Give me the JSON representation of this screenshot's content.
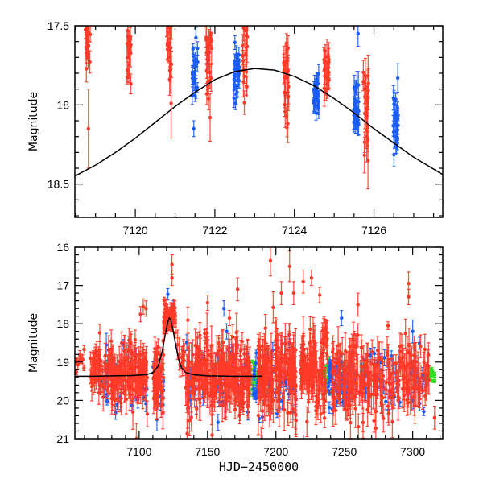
{
  "chart_data": [
    {
      "panel": "top",
      "type": "scatter",
      "title": "",
      "xlabel": "",
      "ylabel": "Magnitude",
      "xlim": [
        7118.48,
        7127.73
      ],
      "ylim": [
        18.71,
        17.5
      ],
      "y_inverted": true,
      "x_ticks": [
        7120,
        7122,
        7124,
        7126
      ],
      "x_tick_labels": [
        "7120",
        "7122",
        "7124",
        "7126"
      ],
      "x_minor_step": 0.5,
      "y_ticks": [
        17.5,
        18,
        18.5
      ],
      "y_tick_labels": [
        "17.5",
        "18",
        "18.5"
      ],
      "y_minor_step": 0.1,
      "grid": false,
      "legend": "none",
      "model_curve": {
        "color": "#000000",
        "x": [
          7118.48,
          7119.0,
          7119.5,
          7120.0,
          7120.5,
          7121.0,
          7121.5,
          7122.0,
          7122.5,
          7123.0,
          7123.5,
          7124.0,
          7124.5,
          7125.0,
          7125.5,
          7126.0,
          7126.5,
          7127.0,
          7127.73
        ],
        "y": [
          18.45,
          18.38,
          18.3,
          18.21,
          18.11,
          18.01,
          17.92,
          17.84,
          17.79,
          17.77,
          17.78,
          17.82,
          17.88,
          17.96,
          18.05,
          18.15,
          18.24,
          18.33,
          18.44
        ]
      },
      "series": [
        {
          "name": "red",
          "color": "#ff3a28",
          "clusters": [
            {
              "x": 7118.8,
              "mag": 17.55,
              "spread": 0.18,
              "n": 28,
              "err": 0.06
            },
            {
              "x": 7119.85,
              "mag": 17.65,
              "spread": 0.12,
              "n": 22,
              "err": 0.06
            },
            {
              "x": 7120.85,
              "mag": 17.63,
              "spread": 0.15,
              "n": 26,
              "err": 0.07
            },
            {
              "x": 7121.85,
              "mag": 17.66,
              "spread": 0.14,
              "n": 22,
              "err": 0.07
            },
            {
              "x": 7122.75,
              "mag": 17.68,
              "spread": 0.12,
              "n": 22,
              "err": 0.07
            },
            {
              "x": 7123.8,
              "mag": 17.86,
              "spread": 0.12,
              "n": 24,
              "err": 0.08
            },
            {
              "x": 7124.8,
              "mag": 17.82,
              "spread": 0.1,
              "n": 20,
              "err": 0.08
            },
            {
              "x": 7125.8,
              "mag": 18.0,
              "spread": 0.12,
              "n": 20,
              "err": 0.09
            }
          ],
          "outliers": [
            {
              "x": 7118.82,
              "mag": 18.15,
              "err": 0.25
            },
            {
              "x": 7121.88,
              "mag": 18.08,
              "err": 0.15
            },
            {
              "x": 7120.9,
              "mag": 17.99,
              "err": 0.22
            },
            {
              "x": 7125.85,
              "mag": 18.35,
              "err": 0.18
            },
            {
              "x": 7125.82,
              "mag": 18.2,
              "err": 0.16
            },
            {
              "x": 7123.8,
              "mag": 17.61,
              "err": 0.06
            }
          ]
        },
        {
          "name": "blue",
          "color": "#1b5cf5",
          "clusters": [
            {
              "x": 7121.5,
              "mag": 17.76,
              "spread": 0.09,
              "n": 24,
              "err": 0.05
            },
            {
              "x": 7122.55,
              "mag": 17.8,
              "spread": 0.08,
              "n": 26,
              "err": 0.05
            },
            {
              "x": 7124.55,
              "mag": 17.93,
              "spread": 0.06,
              "n": 26,
              "err": 0.05
            },
            {
              "x": 7125.55,
              "mag": 18.02,
              "spread": 0.07,
              "n": 26,
              "err": 0.06
            },
            {
              "x": 7126.55,
              "mag": 18.1,
              "spread": 0.08,
              "n": 26,
              "err": 0.06
            }
          ],
          "outliers": [
            {
              "x": 7121.47,
              "mag": 18.15,
              "err": 0.05
            },
            {
              "x": 7125.6,
              "mag": 17.55,
              "err": 0.08
            },
            {
              "x": 7126.6,
              "mag": 17.83,
              "err": 0.09
            },
            {
              "x": 7122.52,
              "mag": 17.99,
              "err": 0.04
            }
          ]
        }
      ]
    },
    {
      "panel": "bottom",
      "type": "scatter",
      "title": "",
      "xlabel": "HJD−2450000",
      "ylabel": "Magnitude",
      "xlim": [
        7053,
        7322
      ],
      "ylim": [
        21,
        16
      ],
      "y_inverted": true,
      "x_ticks": [
        7100,
        7150,
        7200,
        7250,
        7300
      ],
      "x_tick_labels": [
        "7100",
        "7150",
        "7200",
        "7250",
        "7300"
      ],
      "x_minor_step": 10,
      "y_ticks": [
        16,
        17,
        18,
        19,
        20,
        21
      ],
      "y_tick_labels": [
        "16",
        "17",
        "18",
        "19",
        "20",
        "21"
      ],
      "y_minor_step": 0.2,
      "grid": false,
      "legend": "none",
      "model_curve": {
        "color": "#000000",
        "x": [
          7053,
          7065,
          7080,
          7095,
          7105,
          7110,
          7114,
          7117,
          7119,
          7121,
          7122,
          7123,
          7125,
          7127,
          7129,
          7131,
          7134,
          7140,
          7150,
          7170,
          7190
        ],
        "y": [
          19.37,
          19.37,
          19.36,
          19.35,
          19.33,
          19.28,
          19.1,
          18.7,
          18.3,
          17.95,
          17.85,
          17.88,
          18.2,
          18.6,
          18.95,
          19.15,
          19.27,
          19.33,
          19.36,
          19.37,
          19.37
        ]
      },
      "series": [
        {
          "name": "green",
          "color": "#33dd22",
          "clusters": [
            {
              "x0": 7180,
              "x1": 7186,
              "mag": 19.35,
              "spread": 0.2,
              "n": 30,
              "err": 0.05
            },
            {
              "x0": 7234,
              "x1": 7240,
              "mag": 19.35,
              "spread": 0.25,
              "n": 20,
              "err": 0.05
            },
            {
              "x0": 7311,
              "x1": 7316,
              "mag": 19.35,
              "spread": 0.1,
              "n": 16,
              "err": 0.05
            }
          ]
        },
        {
          "name": "blue",
          "color": "#1b5cf5",
          "clusters": [
            {
              "x0": 7070,
              "x1": 7108,
              "mag": 19.4,
              "spread": 0.45,
              "n": 40,
              "err": 0.15
            },
            {
              "x0": 7110,
              "x1": 7118,
              "mag": 19.5,
              "spread": 0.4,
              "n": 14,
              "err": 0.15
            },
            {
              "x0": 7134,
              "x1": 7180,
              "mag": 19.45,
              "spread": 0.45,
              "n": 60,
              "err": 0.15
            },
            {
              "x0": 7183,
              "x1": 7192,
              "mag": 19.5,
              "spread": 0.35,
              "n": 40,
              "err": 0.1
            },
            {
              "x0": 7192,
              "x1": 7215,
              "mag": 19.45,
              "spread": 0.45,
              "n": 40,
              "err": 0.15
            },
            {
              "x0": 7238,
              "x1": 7250,
              "mag": 19.5,
              "spread": 0.35,
              "n": 60,
              "err": 0.1
            },
            {
              "x0": 7250,
              "x1": 7310,
              "mag": 19.45,
              "spread": 0.45,
              "n": 70,
              "err": 0.15
            }
          ],
          "outliers": [
            {
              "x": 7076,
              "mag": 18.55,
              "err": 0.3
            },
            {
              "x": 7121,
              "mag": 17.23,
              "err": 0.15
            },
            {
              "x": 7125,
              "mag": 17.55,
              "err": 0.15
            },
            {
              "x": 7162,
              "mag": 17.6,
              "err": 0.2
            },
            {
              "x": 7164,
              "mag": 18.2,
              "err": 0.2
            },
            {
              "x": 7248,
              "mag": 17.85,
              "err": 0.2
            },
            {
              "x": 7300,
              "mag": 18.2,
              "err": 0.3
            },
            {
              "x": 7113,
              "mag": 20.5,
              "err": 0.3
            }
          ]
        },
        {
          "name": "red",
          "color": "#ff3a28",
          "clusters": [
            {
              "x0": 7054,
              "x1": 7060,
              "mag": 19.0,
              "spread": 0.12,
              "n": 12,
              "err": 0.1
            },
            {
              "x0": 7064,
              "x1": 7078,
              "mag": 19.2,
              "spread": 0.35,
              "n": 60,
              "err": 0.25
            },
            {
              "x0": 7078,
              "x1": 7106,
              "mag": 19.4,
              "spread": 0.4,
              "n": 140,
              "err": 0.3
            },
            {
              "x0": 7110,
              "x1": 7118,
              "mag": 19.45,
              "spread": 0.4,
              "n": 50,
              "err": 0.3
            },
            {
              "x0": 7118,
              "x1": 7127,
              "mag": 17.8,
              "spread": 0.18,
              "n": 80,
              "err": 0.12
            },
            {
              "x0": 7128,
              "x1": 7133,
              "mag": 18.7,
              "spread": 0.3,
              "n": 12,
              "err": 0.3
            },
            {
              "x0": 7134,
              "x1": 7182,
              "mag": 19.4,
              "spread": 0.45,
              "n": 260,
              "err": 0.35
            },
            {
              "x0": 7187,
              "x1": 7215,
              "mag": 19.3,
              "spread": 0.55,
              "n": 160,
              "err": 0.4
            },
            {
              "x0": 7218,
              "x1": 7237,
              "mag": 19.2,
              "spread": 0.5,
              "n": 110,
              "err": 0.35
            },
            {
              "x0": 7234,
              "x1": 7238,
              "mag": 18.3,
              "spread": 0.25,
              "n": 14,
              "err": 0.25
            },
            {
              "x0": 7241,
              "x1": 7278,
              "mag": 19.45,
              "spread": 0.45,
              "n": 150,
              "err": 0.35
            },
            {
              "x0": 7278,
              "x1": 7312,
              "mag": 19.4,
              "spread": 0.45,
              "n": 110,
              "err": 0.35
            }
          ],
          "outliers": [
            {
              "x": 7103,
              "mag": 17.55,
              "err": 0.2
            },
            {
              "x": 7101,
              "mag": 17.75,
              "err": 0.2
            },
            {
              "x": 7105,
              "mag": 17.6,
              "err": 0.2
            },
            {
              "x": 7124,
              "mag": 16.45,
              "err": 0.25
            },
            {
              "x": 7124,
              "mag": 16.8,
              "err": 0.2
            },
            {
              "x": 7150,
              "mag": 17.45,
              "err": 0.2
            },
            {
              "x": 7148,
              "mag": 18.25,
              "err": 0.1
            },
            {
              "x": 7166,
              "mag": 17.85,
              "err": 0.2
            },
            {
              "x": 7172,
              "mag": 17.1,
              "err": 0.3
            },
            {
              "x": 7196,
              "mag": 16.35,
              "err": 0.4
            },
            {
              "x": 7204,
              "mag": 17.2,
              "err": 0.3
            },
            {
              "x": 7210,
              "mag": 16.5,
              "err": 0.4
            },
            {
              "x": 7213,
              "mag": 17.2,
              "err": 0.3
            },
            {
              "x": 7220,
              "mag": 16.9,
              "err": 0.3
            },
            {
              "x": 7226,
              "mag": 16.8,
              "err": 0.2
            },
            {
              "x": 7232,
              "mag": 17.25,
              "err": 0.2
            },
            {
              "x": 7260,
              "mag": 17.5,
              "err": 0.3
            },
            {
              "x": 7260,
              "mag": 18.3,
              "err": 0.3
            },
            {
              "x": 7282,
              "mag": 18.05,
              "err": 0.1
            },
            {
              "x": 7297,
              "mag": 16.95,
              "err": 0.3
            },
            {
              "x": 7297,
              "mag": 17.3,
              "err": 0.2
            },
            {
              "x": 7094,
              "mag": 18.5,
              "err": 0.3
            },
            {
              "x": 7098,
              "mag": 21.0,
              "err": 0.4
            },
            {
              "x": 7316,
              "mag": 20.45,
              "err": 0.3
            }
          ]
        }
      ]
    }
  ]
}
